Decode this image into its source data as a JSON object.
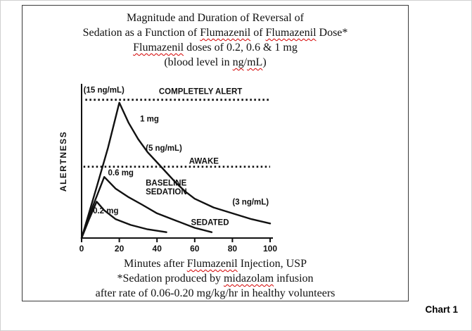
{
  "page": {
    "chart_caption": "Chart 1"
  },
  "chart_data": {
    "type": "line",
    "title_lines": [
      {
        "segments": [
          {
            "t": "Magnitude and Duration of Reversal of"
          }
        ]
      },
      {
        "segments": [
          {
            "t": "Sedation as a Function of "
          },
          {
            "t": "Flumazenil",
            "u": true
          },
          {
            "t": " of "
          },
          {
            "t": "Flumazenil",
            "u": true
          },
          {
            "t": " Dose*"
          }
        ]
      },
      {
        "segments": [
          {
            "t": "Flumazenil",
            "u": true
          },
          {
            "t": " doses of 0.2, 0.6 & 1 mg"
          }
        ]
      },
      {
        "segments": [
          {
            "t": "(blood level in "
          },
          {
            "t": "ng",
            "u": true
          },
          {
            "t": "/"
          },
          {
            "t": "mL",
            "u": true
          },
          {
            "t": ")"
          }
        ]
      }
    ],
    "xlabel_line": {
      "segments": [
        {
          "t": "Minutes after "
        },
        {
          "t": "Flumazenil",
          "u": true
        },
        {
          "t": " Injection, USP"
        }
      ]
    },
    "footnote_lines": [
      {
        "segments": [
          {
            "t": "*Sedation produced by "
          },
          {
            "t": "midazolam",
            "u": true
          },
          {
            "t": " infusion"
          }
        ]
      },
      {
        "segments": [
          {
            "t": "after rate of 0.06-0.20 mg/kg/hr in healthy volunteers"
          }
        ]
      }
    ],
    "ylabel": "ALERTNESS",
    "xlim": [
      0,
      100
    ],
    "ylim": [
      0,
      105
    ],
    "x_ticks": [
      0,
      20,
      40,
      60,
      80,
      100
    ],
    "grid": false,
    "legend": "inline-labels",
    "reference_lines": [
      {
        "name": "completely-alert-line",
        "y": 95,
        "style": "dotted",
        "x_start": 2,
        "x_end": 100
      },
      {
        "name": "awake-line",
        "y": 49,
        "style": "dotted",
        "x_start": 1,
        "x_end": 100
      }
    ],
    "series": [
      {
        "name": "1 mg",
        "points": [
          [
            0,
            0
          ],
          [
            8,
            35
          ],
          [
            14,
            62
          ],
          [
            20,
            93
          ],
          [
            25,
            79
          ],
          [
            30,
            68
          ],
          [
            35,
            59
          ],
          [
            40,
            52
          ],
          [
            45,
            45
          ],
          [
            50,
            38
          ],
          [
            55,
            32
          ],
          [
            60,
            27
          ],
          [
            70,
            21
          ],
          [
            80,
            17
          ],
          [
            90,
            13
          ],
          [
            100,
            10
          ]
        ]
      },
      {
        "name": "0.6 mg",
        "points": [
          [
            0,
            0
          ],
          [
            6,
            22
          ],
          [
            12,
            42
          ],
          [
            18,
            34
          ],
          [
            25,
            28
          ],
          [
            32,
            23
          ],
          [
            40,
            17
          ],
          [
            50,
            12
          ],
          [
            60,
            7
          ],
          [
            69,
            4
          ]
        ]
      },
      {
        "name": "0.2 mg",
        "points": [
          [
            0,
            0
          ],
          [
            4,
            13
          ],
          [
            8,
            25
          ],
          [
            12,
            19
          ],
          [
            18,
            13
          ],
          [
            26,
            9
          ],
          [
            35,
            6
          ],
          [
            45,
            4
          ]
        ]
      }
    ],
    "annotations": [
      {
        "text": "(15 ng/mL)",
        "x": 1,
        "y": 100
      },
      {
        "text": "COMPLETELY ALERT",
        "x": 41,
        "y": 99
      },
      {
        "text": "1 mg",
        "x": 31,
        "y": 80
      },
      {
        "text": "(5 ng/mL)",
        "x": 34,
        "y": 60
      },
      {
        "text": "AWAKE",
        "x": 57,
        "y": 51
      },
      {
        "text": "0.6 mg",
        "x": 14,
        "y": 43
      },
      {
        "text": "BASELINE",
        "x": 34,
        "y": 36
      },
      {
        "text": "SEDATION",
        "x": 34,
        "y": 30
      },
      {
        "text": "0.2 mg",
        "x": 6,
        "y": 17
      },
      {
        "text": "SEDATED",
        "x": 58,
        "y": 9
      },
      {
        "text": "(3 ng/mL)",
        "x": 80,
        "y": 23
      }
    ]
  }
}
